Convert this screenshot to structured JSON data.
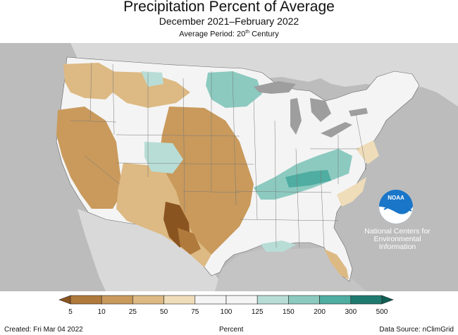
{
  "title": "Precipitation Percent of Average",
  "subtitle": "December 2021–February 2022",
  "period_prefix": "Average Period: 20",
  "period_sup": "th",
  "period_suffix": " Century",
  "noaa_logo_text": "NOAA",
  "noaa_org_lines": [
    "National Centers for",
    "Environmental",
    "Information"
  ],
  "legend": {
    "labels": [
      "5",
      "10",
      "25",
      "50",
      "75",
      "100",
      "125",
      "150",
      "200",
      "300",
      "500"
    ],
    "colors": [
      "#8a5420",
      "#b07a3c",
      "#c99a5c",
      "#ddb983",
      "#efdcb9",
      "#f4f4f4",
      "#f4f4f4",
      "#b8ddd6",
      "#8ccac0",
      "#4fada1",
      "#1f7a6f"
    ],
    "unit_label": "Percent"
  },
  "footer": {
    "created": "Created: Fri Mar 04 2022",
    "source": "Data Source: nClimGrid"
  },
  "colors": {
    "background_land": "#bdbdbd",
    "ocean": "#d4d4d4",
    "dry": "#c99a5c",
    "very_dry": "#8a5420",
    "wet": "#8ccac0",
    "near_normal": "#f4f4f4",
    "noaa_blue": "#1976c9"
  }
}
